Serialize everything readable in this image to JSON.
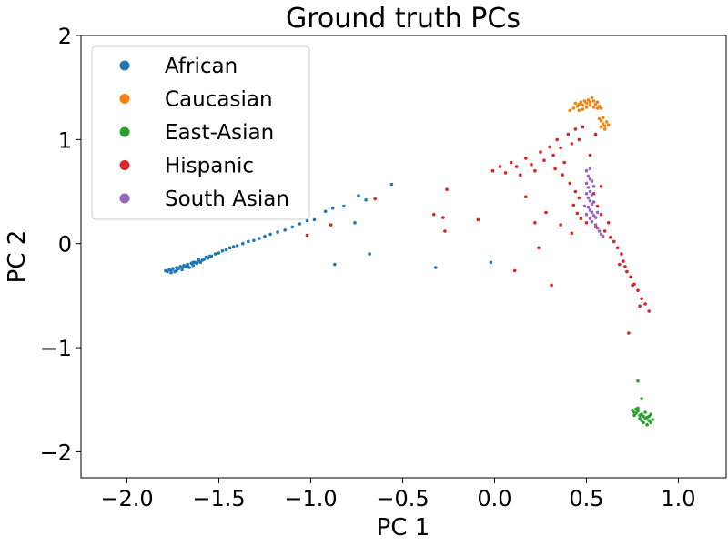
{
  "chart_data": {
    "type": "scatter",
    "title": "Ground truth PCs",
    "xlabel": "PC 1",
    "ylabel": "PC 2",
    "xlim": [
      -2.25,
      1.26
    ],
    "ylim": [
      -2.25,
      2.0
    ],
    "xticks": [
      -2.0,
      -1.5,
      -1.0,
      -0.5,
      0.0,
      0.5,
      1.0
    ],
    "xtick_labels": [
      "−2.0",
      "−1.5",
      "−1.0",
      "−0.5",
      "0.0",
      "0.5",
      "1.0"
    ],
    "yticks": [
      -2,
      -1,
      0,
      1,
      2
    ],
    "ytick_labels": [
      "−2",
      "−1",
      "0",
      "1",
      "2"
    ],
    "grid": false,
    "legend_position": "top-left",
    "series": [
      {
        "name": "African",
        "color": "#1f77b4",
        "points": [
          [
            -1.79,
            -0.26
          ],
          [
            -1.78,
            -0.27
          ],
          [
            -1.77,
            -0.25
          ],
          [
            -1.76,
            -0.26
          ],
          [
            -1.75,
            -0.24
          ],
          [
            -1.74,
            -0.27
          ],
          [
            -1.73,
            -0.23
          ],
          [
            -1.72,
            -0.24
          ],
          [
            -1.71,
            -0.22
          ],
          [
            -1.7,
            -0.25
          ],
          [
            -1.69,
            -0.21
          ],
          [
            -1.68,
            -0.22
          ],
          [
            -1.67,
            -0.2
          ],
          [
            -1.66,
            -0.23
          ],
          [
            -1.65,
            -0.19
          ],
          [
            -1.64,
            -0.21
          ],
          [
            -1.63,
            -0.18
          ],
          [
            -1.62,
            -0.19
          ],
          [
            -1.61,
            -0.17
          ],
          [
            -1.6,
            -0.18
          ],
          [
            -1.58,
            -0.15
          ],
          [
            -1.56,
            -0.14
          ],
          [
            -1.54,
            -0.12
          ],
          [
            -1.52,
            -0.1
          ],
          [
            -1.5,
            -0.09
          ],
          [
            -1.48,
            -0.07
          ],
          [
            -1.46,
            -0.06
          ],
          [
            -1.44,
            -0.04
          ],
          [
            -1.42,
            -0.03
          ],
          [
            -1.4,
            -0.02
          ],
          [
            -1.37,
            0.0
          ],
          [
            -1.34,
            0.02
          ],
          [
            -1.31,
            0.03
          ],
          [
            -1.28,
            0.05
          ],
          [
            -1.25,
            0.07
          ],
          [
            -1.22,
            0.09
          ],
          [
            -1.18,
            0.11
          ],
          [
            -1.14,
            0.13
          ],
          [
            -1.1,
            0.16
          ],
          [
            -1.06,
            0.19
          ],
          [
            -1.02,
            0.22
          ],
          [
            -0.98,
            0.23
          ],
          [
            -0.92,
            0.31
          ],
          [
            -0.88,
            0.34
          ],
          [
            -0.82,
            0.36
          ],
          [
            -0.74,
            0.46
          ],
          [
            -0.56,
            0.57
          ],
          [
            -0.7,
            0.42
          ],
          [
            -0.87,
            -0.2
          ],
          [
            -0.68,
            -0.1
          ],
          [
            -0.32,
            -0.23
          ],
          [
            -0.02,
            -0.18
          ],
          [
            -0.76,
            0.2
          ],
          [
            -1.76,
            -0.28
          ],
          [
            -1.73,
            -0.26
          ],
          [
            -1.7,
            -0.23
          ],
          [
            -1.67,
            -0.22
          ],
          [
            -1.64,
            -0.18
          ],
          [
            -1.61,
            -0.15
          ],
          [
            -1.59,
            -0.16
          ],
          [
            -1.57,
            -0.13
          ],
          [
            -1.55,
            -0.12
          ]
        ]
      },
      {
        "name": "Caucasian",
        "color": "#ff7f0e",
        "points": [
          [
            0.43,
            1.3
          ],
          [
            0.45,
            1.32
          ],
          [
            0.46,
            1.34
          ],
          [
            0.47,
            1.36
          ],
          [
            0.48,
            1.33
          ],
          [
            0.49,
            1.37
          ],
          [
            0.5,
            1.35
          ],
          [
            0.51,
            1.38
          ],
          [
            0.52,
            1.36
          ],
          [
            0.53,
            1.4
          ],
          [
            0.54,
            1.37
          ],
          [
            0.55,
            1.34
          ],
          [
            0.56,
            1.36
          ],
          [
            0.57,
            1.32
          ],
          [
            0.58,
            1.3
          ],
          [
            0.46,
            1.28
          ],
          [
            0.48,
            1.29
          ],
          [
            0.5,
            1.31
          ],
          [
            0.52,
            1.33
          ],
          [
            0.54,
            1.31
          ],
          [
            0.56,
            1.3
          ],
          [
            0.57,
            1.2
          ],
          [
            0.58,
            1.18
          ],
          [
            0.59,
            1.15
          ],
          [
            0.6,
            1.13
          ],
          [
            0.61,
            1.17
          ],
          [
            0.58,
            1.12
          ],
          [
            0.6,
            1.1
          ],
          [
            0.62,
            1.14
          ],
          [
            0.59,
            1.21
          ],
          [
            0.41,
            1.28
          ],
          [
            0.44,
            1.35
          ]
        ]
      },
      {
        "name": "East-Asian",
        "color": "#2ca02c",
        "points": [
          [
            0.75,
            -1.6
          ],
          [
            0.76,
            -1.62
          ],
          [
            0.77,
            -1.63
          ],
          [
            0.78,
            -1.61
          ],
          [
            0.79,
            -1.65
          ],
          [
            0.8,
            -1.64
          ],
          [
            0.81,
            -1.66
          ],
          [
            0.82,
            -1.68
          ],
          [
            0.83,
            -1.67
          ],
          [
            0.84,
            -1.7
          ],
          [
            0.85,
            -1.72
          ],
          [
            0.8,
            -1.7
          ],
          [
            0.82,
            -1.62
          ],
          [
            0.78,
            -1.58
          ],
          [
            0.84,
            -1.66
          ],
          [
            0.86,
            -1.69
          ],
          [
            0.81,
            -1.72
          ],
          [
            0.79,
            -1.68
          ],
          [
            0.77,
            -1.59
          ],
          [
            0.83,
            -1.74
          ],
          [
            0.8,
            -1.49
          ],
          [
            0.78,
            -1.32
          ],
          [
            0.76,
            -1.65
          ],
          [
            0.85,
            -1.64
          ]
        ]
      },
      {
        "name": "Hispanic",
        "color": "#d62728",
        "points": [
          [
            -0.01,
            0.7
          ],
          [
            0.03,
            0.74
          ],
          [
            0.06,
            0.68
          ],
          [
            0.09,
            0.78
          ],
          [
            0.12,
            0.74
          ],
          [
            0.14,
            0.66
          ],
          [
            0.17,
            0.82
          ],
          [
            0.2,
            0.76
          ],
          [
            0.22,
            0.7
          ],
          [
            0.25,
            0.88
          ],
          [
            0.27,
            0.8
          ],
          [
            0.3,
            0.93
          ],
          [
            0.32,
            0.85
          ],
          [
            0.34,
            1.0
          ],
          [
            0.36,
            0.92
          ],
          [
            0.38,
            0.78
          ],
          [
            0.4,
            1.05
          ],
          [
            0.42,
            0.96
          ],
          [
            0.44,
            1.1
          ],
          [
            0.46,
            1.0
          ],
          [
            0.48,
            1.12
          ],
          [
            0.33,
            0.72
          ],
          [
            0.37,
            0.66
          ],
          [
            0.41,
            0.58
          ],
          [
            0.44,
            0.5
          ],
          [
            0.46,
            0.44
          ],
          [
            0.43,
            0.37
          ],
          [
            0.45,
            0.29
          ],
          [
            0.47,
            0.24
          ],
          [
            0.5,
            0.2
          ],
          [
            0.55,
            0.16
          ],
          [
            0.6,
            0.12
          ],
          [
            0.63,
            0.06
          ],
          [
            0.65,
            0.02
          ],
          [
            0.67,
            -0.04
          ],
          [
            0.69,
            -0.1
          ],
          [
            0.7,
            -0.17
          ],
          [
            0.71,
            -0.22
          ],
          [
            0.72,
            -0.27
          ],
          [
            0.74,
            -0.32
          ],
          [
            0.76,
            -0.39
          ],
          [
            0.78,
            -0.45
          ],
          [
            0.8,
            -0.53
          ],
          [
            0.82,
            -0.58
          ],
          [
            0.84,
            -0.65
          ],
          [
            0.79,
            -0.6
          ],
          [
            0.73,
            -0.86
          ],
          [
            0.75,
            -0.4
          ],
          [
            0.68,
            -0.2
          ],
          [
            0.62,
            0.2
          ],
          [
            0.58,
            0.28
          ],
          [
            0.56,
            0.36
          ],
          [
            0.54,
            0.48
          ],
          [
            0.58,
            0.55
          ],
          [
            0.52,
            0.85
          ],
          [
            0.55,
            1.05
          ],
          [
            -0.26,
            0.52
          ],
          [
            -0.33,
            0.28
          ],
          [
            -0.28,
            0.25
          ],
          [
            -0.09,
            0.23
          ],
          [
            -0.27,
            0.12
          ],
          [
            -0.65,
            0.43
          ],
          [
            -1.02,
            0.08
          ],
          [
            -0.89,
            0.18
          ],
          [
            0.11,
            -0.26
          ],
          [
            0.22,
            0.2
          ],
          [
            0.31,
            -0.4
          ],
          [
            0.24,
            -0.04
          ],
          [
            0.17,
            0.45
          ],
          [
            0.28,
            0.3
          ],
          [
            0.36,
            0.18
          ],
          [
            0.42,
            0.1
          ]
        ]
      },
      {
        "name": "South Asian",
        "color": "#9467bd",
        "points": [
          [
            0.5,
            0.7
          ],
          [
            0.51,
            0.65
          ],
          [
            0.52,
            0.62
          ],
          [
            0.5,
            0.58
          ],
          [
            0.51,
            0.54
          ],
          [
            0.52,
            0.5
          ],
          [
            0.53,
            0.47
          ],
          [
            0.51,
            0.44
          ],
          [
            0.52,
            0.41
          ],
          [
            0.53,
            0.38
          ],
          [
            0.51,
            0.35
          ],
          [
            0.52,
            0.32
          ],
          [
            0.53,
            0.3
          ],
          [
            0.54,
            0.27
          ],
          [
            0.52,
            0.24
          ],
          [
            0.53,
            0.21
          ],
          [
            0.55,
            0.18
          ],
          [
            0.56,
            0.15
          ],
          [
            0.57,
            0.12
          ],
          [
            0.58,
            0.09
          ],
          [
            0.59,
            0.07
          ],
          [
            0.55,
            0.25
          ],
          [
            0.54,
            0.4
          ],
          [
            0.5,
            0.48
          ],
          [
            0.49,
            0.36
          ],
          [
            0.54,
            0.55
          ],
          [
            0.52,
            0.72
          ],
          [
            0.56,
            0.3
          ],
          [
            0.5,
            0.28
          ],
          [
            0.53,
            0.6
          ]
        ]
      }
    ]
  }
}
